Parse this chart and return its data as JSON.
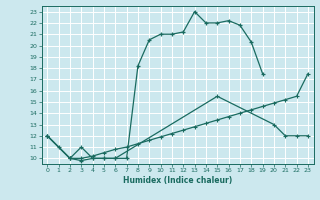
{
  "title": "",
  "xlabel": "Humidex (Indice chaleur)",
  "bg_color": "#cce8ee",
  "grid_color": "#ffffff",
  "line_color": "#1a6b60",
  "xlim": [
    -0.5,
    23.5
  ],
  "ylim": [
    9.5,
    23.5
  ],
  "xticks": [
    0,
    1,
    2,
    3,
    4,
    5,
    6,
    7,
    8,
    9,
    10,
    11,
    12,
    13,
    14,
    15,
    16,
    17,
    18,
    19,
    20,
    21,
    22,
    23
  ],
  "yticks": [
    10,
    11,
    12,
    13,
    14,
    15,
    16,
    17,
    18,
    19,
    20,
    21,
    22,
    23
  ],
  "curve1_x": [
    0,
    1,
    2,
    3,
    4,
    5,
    6,
    7,
    8,
    9,
    10,
    11,
    12,
    13,
    14,
    15,
    16,
    17,
    18,
    19
  ],
  "curve1_y": [
    12,
    11,
    10,
    9.8,
    10,
    10,
    10,
    10,
    18.2,
    20.5,
    21.0,
    21.0,
    21.2,
    23.0,
    22.0,
    22.0,
    22.2,
    21.8,
    20.3,
    17.5
  ],
  "curve2_x": [
    0,
    2,
    3,
    4,
    5,
    6,
    15,
    20,
    21,
    22,
    23
  ],
  "curve2_y": [
    12,
    10,
    11,
    10,
    10,
    10,
    15.5,
    13,
    12,
    12,
    12
  ],
  "curve3_x": [
    0,
    2,
    3,
    4,
    5,
    6,
    7,
    8,
    9,
    10,
    11,
    12,
    13,
    14,
    15,
    16,
    17,
    18,
    19,
    20,
    21,
    22,
    23
  ],
  "curve3_y": [
    12,
    10,
    10,
    10.2,
    10.5,
    10.8,
    11.0,
    11.3,
    11.6,
    11.9,
    12.2,
    12.5,
    12.8,
    13.1,
    13.4,
    13.7,
    14.0,
    14.3,
    14.6,
    14.9,
    15.2,
    15.5,
    17.5
  ]
}
